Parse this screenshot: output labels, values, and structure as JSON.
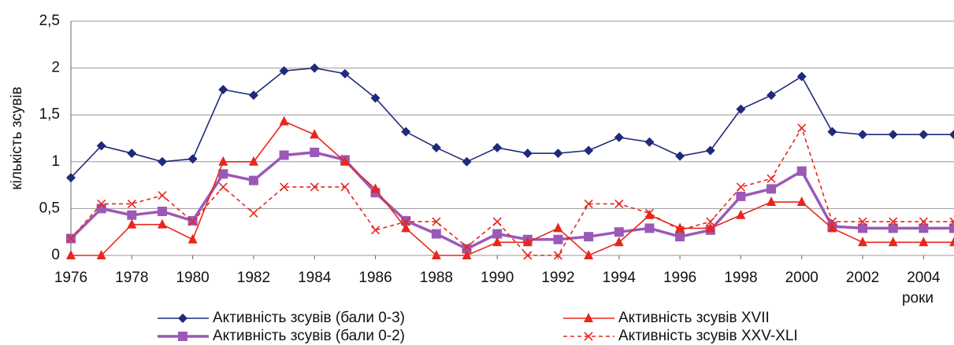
{
  "chart_data": {
    "type": "line",
    "x": [
      1976,
      1977,
      1978,
      1979,
      1980,
      1981,
      1982,
      1983,
      1984,
      1985,
      1986,
      1987,
      1988,
      1989,
      1990,
      1991,
      1992,
      1993,
      1994,
      1995,
      1996,
      1997,
      1998,
      1999,
      2000,
      2001,
      2002,
      2003,
      2004,
      2005
    ],
    "xlim": [
      1976,
      2005
    ],
    "xticks": [
      1976,
      1978,
      1980,
      1982,
      1984,
      1986,
      1988,
      1990,
      1992,
      1994,
      1996,
      1998,
      2000,
      2002,
      2004
    ],
    "ylim": [
      0,
      2.5
    ],
    "yticks": [
      0,
      {
        "value": 0.5,
        "label": "0,5"
      },
      1,
      {
        "value": 1.5,
        "label": "1,5"
      },
      2,
      {
        "value": 2.5,
        "label": "2,5"
      }
    ],
    "x_label": "роки",
    "y_label": "кількість зсувів",
    "grid": true,
    "series": [
      {
        "name": "Активність зсувів (бали 0-3)",
        "color": "#1f2a7a",
        "marker": "diamond",
        "dash": false,
        "values": [
          0.83,
          1.17,
          1.09,
          1.0,
          1.03,
          1.77,
          1.71,
          1.97,
          2.0,
          1.94,
          1.68,
          1.32,
          1.15,
          1.0,
          1.15,
          1.09,
          1.09,
          1.12,
          1.26,
          1.21,
          1.06,
          1.12,
          1.56,
          1.71,
          1.91,
          1.32,
          1.29,
          1.29,
          1.29,
          1.29
        ]
      },
      {
        "name": "Активність зсувів (бали 0-2)",
        "color": "#9b59b6",
        "marker": "square",
        "dash": false,
        "values": [
          0.18,
          0.5,
          0.43,
          0.47,
          0.37,
          0.87,
          0.8,
          1.07,
          1.1,
          1.02,
          0.67,
          0.37,
          0.23,
          0.07,
          0.23,
          0.17,
          0.17,
          0.2,
          0.25,
          0.29,
          0.2,
          0.27,
          0.63,
          0.71,
          0.9,
          0.31,
          0.29,
          0.29,
          0.29,
          0.29
        ]
      },
      {
        "name": "Активність зсувів XVII",
        "color": "#e8261c",
        "marker": "triangle",
        "dash": false,
        "values": [
          0,
          0,
          0.33,
          0.33,
          0.17,
          1.0,
          1.0,
          1.43,
          1.29,
          1.0,
          0.71,
          0.29,
          0,
          0,
          0.14,
          0.14,
          0.29,
          0,
          0.14,
          0.43,
          0.29,
          0.29,
          0.43,
          0.57,
          0.57,
          0.29,
          0.14,
          0.14,
          0.14,
          0.14
        ]
      },
      {
        "name": "Активність зсувів XXV-XLI",
        "color": "#e8261c",
        "marker": "x",
        "dash": true,
        "values": [
          0.18,
          0.55,
          0.55,
          0.64,
          0.36,
          0.73,
          0.45,
          0.73,
          0.73,
          0.73,
          0.27,
          0.36,
          0.36,
          0.09,
          0.36,
          0,
          0,
          0.55,
          0.55,
          0.45,
          0.27,
          0.36,
          0.73,
          0.82,
          1.36,
          0.36,
          0.36,
          0.36,
          0.36,
          0.36
        ]
      }
    ]
  }
}
